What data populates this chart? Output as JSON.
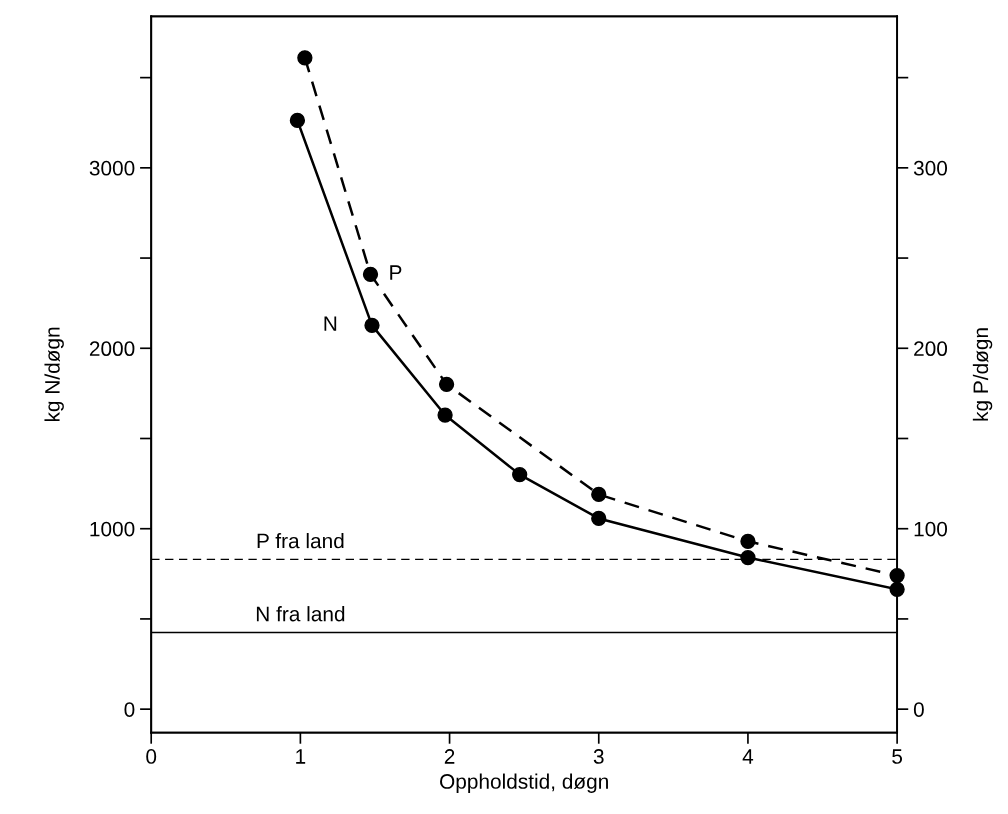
{
  "chart_data": {
    "type": "line",
    "xlabel": "Oppholdstid, døgn",
    "ylabel": "kg N/døgn",
    "y2label": "kg P/døgn",
    "xlim": [
      0,
      5
    ],
    "xticks": [
      0,
      1,
      2,
      3,
      4,
      5
    ],
    "ylim": [
      -130,
      3840
    ],
    "yticks": [
      0,
      {
        "value": 500,
        "label": null
      },
      1000,
      {
        "value": 1500,
        "label": null
      },
      2000,
      {
        "value": 2500,
        "label": null
      },
      3000,
      {
        "value": 3500,
        "label": null
      }
    ],
    "y2lim": [
      -13,
      384
    ],
    "y2ticks": [
      0,
      {
        "value": 50,
        "label": null
      },
      100,
      {
        "value": 150,
        "label": null
      },
      200,
      {
        "value": 250,
        "label": null
      },
      300,
      {
        "value": 350,
        "label": null
      }
    ],
    "marker": "circle",
    "grid": false,
    "legend": false,
    "series": [
      {
        "name": "N",
        "color": "#000000",
        "line_style": "solid",
        "x": [
          0.98,
          1.48,
          1.97,
          2.47,
          3.0,
          4.0,
          5.0
        ],
        "values": [
          3263,
          2127,
          1630,
          1300,
          1057,
          840,
          664
        ]
      },
      {
        "name": "P",
        "color": "#000000",
        "line_style": "dashed",
        "axis": "y2",
        "x": [
          1.03,
          1.47,
          1.98,
          3.0,
          4.0,
          5.0
        ],
        "values": [
          361,
          241,
          180,
          119,
          93,
          74
        ]
      }
    ],
    "ref_lines": [
      {
        "axis": "y2",
        "value": 83,
        "label": "P fra land",
        "line_style": "dashed",
        "color": "#000000"
      },
      {
        "axis": "y",
        "value": 425,
        "label": "N fra land",
        "line_style": "solid",
        "color": "#000000"
      }
    ]
  }
}
